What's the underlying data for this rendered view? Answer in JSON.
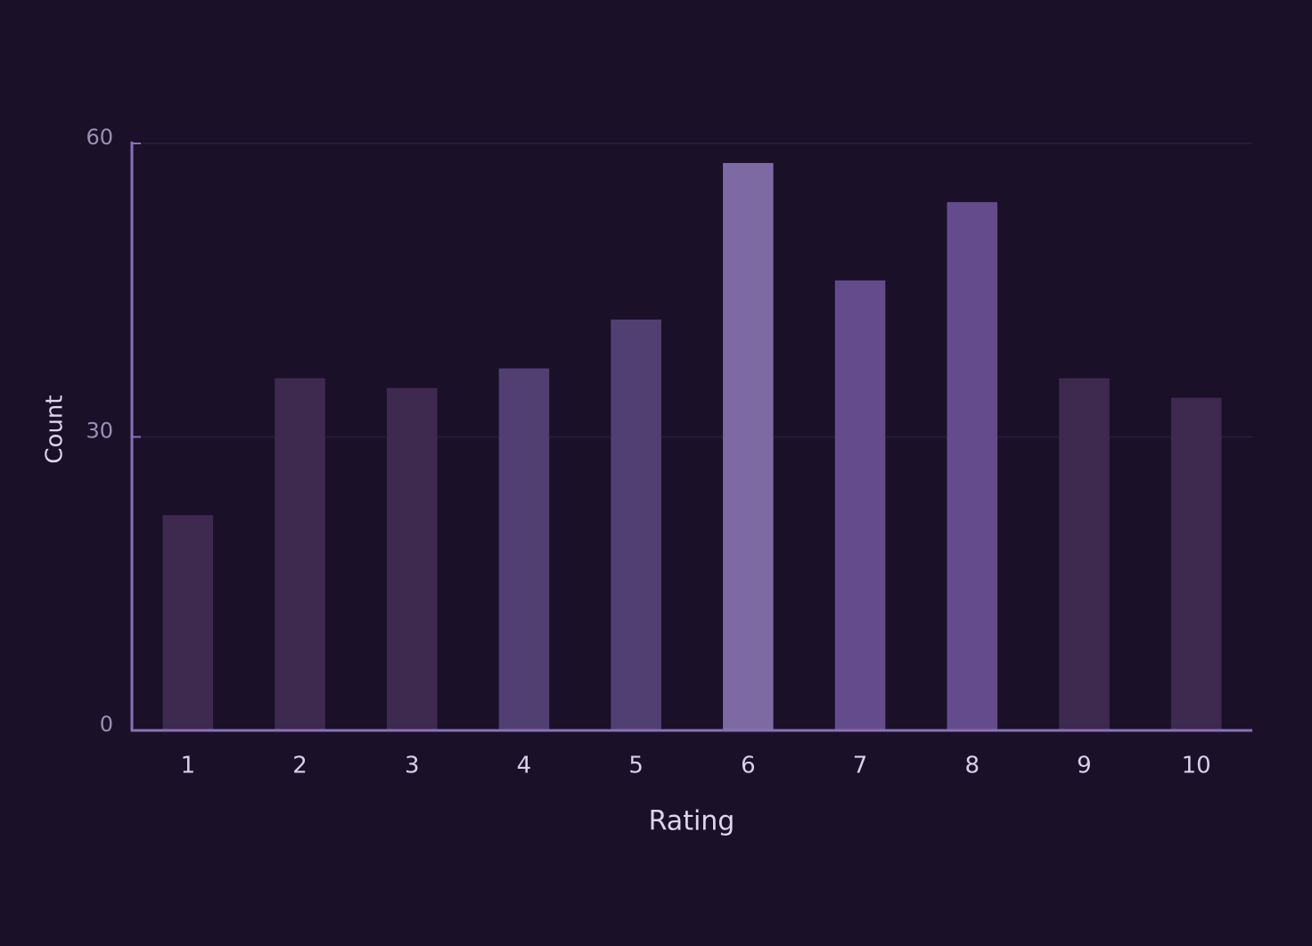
{
  "chart_data": {
    "type": "bar",
    "x_label": "Rating",
    "y_label": "Count",
    "categories": [
      "1",
      "2",
      "3",
      "4",
      "5",
      "6",
      "7",
      "8",
      "9",
      "10"
    ],
    "values": [
      22,
      36,
      35,
      37,
      42,
      58,
      46,
      54,
      36,
      34
    ],
    "colors": [
      "#3f2a4f",
      "#3f2a4f",
      "#3f2a4f",
      "#523f72",
      "#523f72",
      "#7d6aa3",
      "#634b8c",
      "#634b8c",
      "#3f2a4f",
      "#3f2a4f"
    ],
    "ylim": [
      0,
      60
    ],
    "yticks": [
      0,
      30,
      60
    ],
    "grid": true
  }
}
